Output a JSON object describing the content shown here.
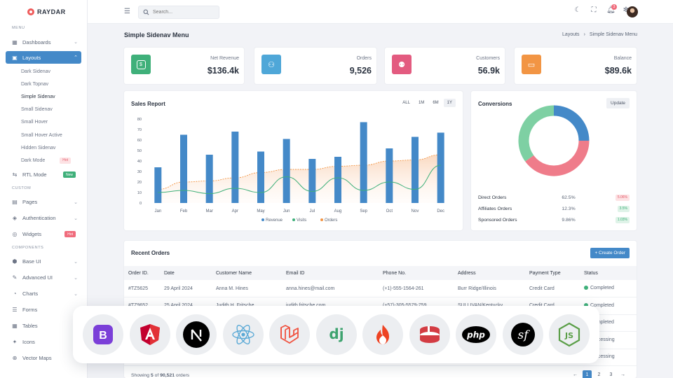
{
  "brand": {
    "name": "RAYDAR"
  },
  "sidebar": {
    "sections": {
      "menu": "MENU",
      "custom": "CUSTOM",
      "components": "COMPONENTS"
    },
    "dashboards": "Dashboards",
    "layouts": "Layouts",
    "layout_items": [
      "Dark Sidenav",
      "Dark Topnav",
      "Simple Sidenav",
      "Small Sidenav",
      "Small Hover",
      "Small Hover Active",
      "Hidden Sidenav",
      "Dark Mode"
    ],
    "dark_mode_badge": "Hot",
    "rtl_mode": "RTL Mode",
    "rtl_badge": "New",
    "pages": "Pages",
    "authentication": "Authentication",
    "widgets": "Widgets",
    "widgets_badge": "Hot",
    "base_ui": "Base UI",
    "advanced_ui": "Advanced UI",
    "charts": "Charts",
    "forms": "Forms",
    "tables": "Tables",
    "icons": "Icons",
    "vector_maps": "Vector Maps"
  },
  "topbar": {
    "search_placeholder": "Search...",
    "notification_count": "3"
  },
  "page": {
    "title": "Simple Sidenav Menu",
    "breadcrumb": [
      "Layouts",
      "›",
      "Simple Sidenav Menu"
    ]
  },
  "stats": [
    {
      "label": "Net Revenue",
      "value": "$136.4k",
      "color": "#3fb07a"
    },
    {
      "label": "Orders",
      "value": "9,526",
      "color": "#4fa7d8"
    },
    {
      "label": "Customers",
      "value": "56.9k",
      "color": "#e35b80"
    },
    {
      "label": "Balance",
      "value": "$89.6k",
      "color": "#f29544"
    }
  ],
  "sales_report": {
    "title": "Sales Report",
    "ranges": [
      "ALL",
      "1M",
      "6M",
      "1Y"
    ],
    "selected_range": "1Y"
  },
  "chart_data": {
    "type": "bar",
    "categories": [
      "Jan",
      "Feb",
      "Mar",
      "Apr",
      "May",
      "Jun",
      "Jul",
      "Aug",
      "Sep",
      "Oct",
      "Nov",
      "Dec"
    ],
    "ylim": [
      0,
      80
    ],
    "yticks": [
      0,
      10,
      20,
      30,
      40,
      50,
      60,
      70,
      80
    ],
    "series": [
      {
        "name": "Revenue",
        "type": "bar",
        "color": "#4489c8",
        "values": [
          34,
          65,
          46,
          68,
          49,
          61,
          42,
          44,
          77,
          52,
          63,
          67
        ]
      },
      {
        "name": "Visits",
        "type": "line",
        "color": "#3fb07a",
        "values": [
          10,
          12,
          9,
          14,
          10,
          25,
          11,
          24,
          12,
          20,
          13,
          36
        ]
      },
      {
        "name": "Orders",
        "type": "area",
        "color": "#f29544",
        "values": [
          13,
          20,
          21,
          24,
          29,
          32,
          32,
          35,
          36,
          40,
          41,
          46
        ]
      }
    ],
    "legend": "bottom",
    "grid": false
  },
  "conversions": {
    "title": "Conversions",
    "update_label": "Update",
    "rows": [
      {
        "label": "Direct Orders",
        "value": "62.5%",
        "change": "5.06%",
        "trend": "down"
      },
      {
        "label": "Affiliates Orders",
        "value": "12.3%",
        "change": "3.5%",
        "trend": "up"
      },
      {
        "label": "Sponsored Orders",
        "value": "9.86%",
        "change": "1.03%",
        "trend": "up"
      }
    ],
    "donut": [
      {
        "name": "Direct",
        "percent": 25,
        "color": "#4489c8"
      },
      {
        "name": "Affiliates",
        "percent": 40,
        "color": "#ef7c8a"
      },
      {
        "name": "Sponsored",
        "percent": 35,
        "color": "#7ed0a3"
      }
    ]
  },
  "orders": {
    "title": "Recent Orders",
    "create_label": "+ Create Order",
    "columns": [
      "Order ID.",
      "Date",
      "Customer Name",
      "Email ID",
      "Phone No.",
      "Address",
      "Payment Type",
      "Status"
    ],
    "rows": [
      [
        "#TZ5625",
        "29 April 2024",
        "Anna M. Hines",
        "anna.hines@mail.com",
        "(+1)-555-1564-261",
        "Burr Ridge/Illinois",
        "Credit Card",
        "Completed"
      ],
      [
        "#TZ9652",
        "25 April 2024",
        "Judith H. Fritsche",
        "judith.fritsche.com",
        "(+57)-305-5579-759",
        "SULLIVAN/Kentucky",
        "Credit Card",
        "Completed"
      ],
      [
        "",
        "",
        "",
        "",
        "",
        "",
        "",
        "Completed"
      ],
      [
        "",
        "",
        "",
        "",
        "",
        "",
        "",
        "Processing"
      ],
      [
        "",
        "",
        "",
        "",
        "",
        "",
        "",
        "Processing"
      ]
    ],
    "showing_prefix": "Showing ",
    "showing_count": "5",
    "showing_mid": " of ",
    "showing_total": "90,521",
    "showing_suffix": " orders",
    "pages": [
      "←",
      "1",
      "2",
      "3",
      "→"
    ]
  },
  "tech_tray": {
    "items": [
      "bootstrap",
      "angular",
      "nextjs",
      "react",
      "laravel",
      "django",
      "codeigniter",
      "cakephp",
      "php",
      "symfony",
      "nodejs"
    ],
    "labels": {
      "django": "dj",
      "php": "php",
      "next": "N",
      "bootstrap": "B",
      "js": "JS",
      "sf": "sf"
    }
  }
}
